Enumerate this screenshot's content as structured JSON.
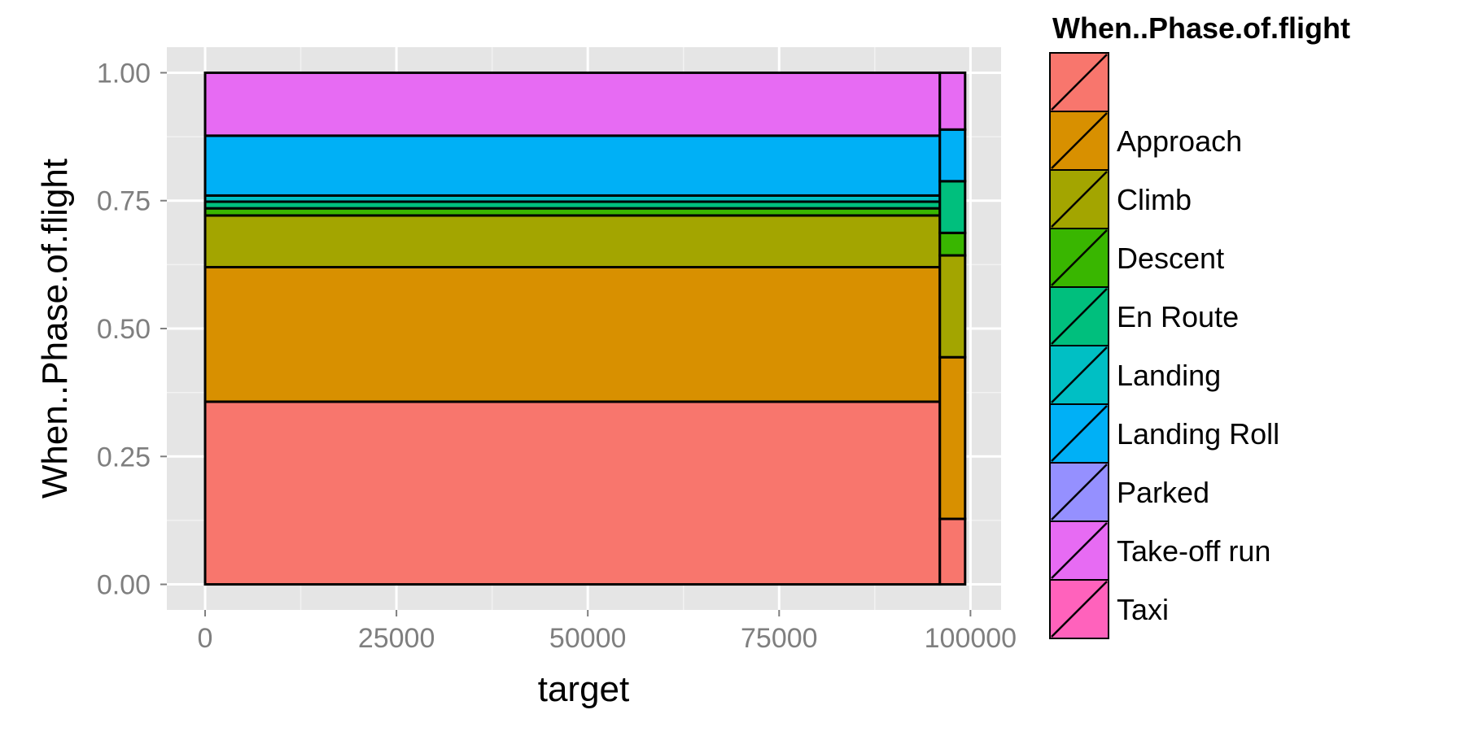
{
  "chart_data": {
    "type": "bar",
    "subtype": "stacked-proportion-variable-width",
    "title": "",
    "xlabel": "target",
    "ylabel": "When..Phase.of.flight",
    "xlim": [
      -5000,
      104000
    ],
    "ylim": [
      -0.05,
      1.05
    ],
    "x_ticks": [
      0,
      25000,
      50000,
      75000,
      100000
    ],
    "x_tick_labels": [
      "0",
      "25000",
      "50000",
      "75000",
      "100000"
    ],
    "y_ticks": [
      0,
      0.25,
      0.5,
      0.75,
      1.0
    ],
    "y_tick_labels": [
      "0.00",
      "0.25",
      "0.50",
      "0.75",
      "1.00"
    ],
    "grid": true,
    "legend": {
      "title": "When..Phase.of.flight",
      "position": "right",
      "entries": [
        {
          "label": "",
          "color": "#F8766D"
        },
        {
          "label": "Approach",
          "color": "#D89000"
        },
        {
          "label": "Climb",
          "color": "#A3A500"
        },
        {
          "label": "Descent",
          "color": "#39B600"
        },
        {
          "label": "En Route",
          "color": "#00BF7D"
        },
        {
          "label": "Landing",
          "color": "#00BFC4"
        },
        {
          "label": "Landing Roll",
          "color": "#00B0F6"
        },
        {
          "label": "Parked",
          "color": "#9590FF"
        },
        {
          "label": "Take-off run",
          "color": "#E76BF3"
        },
        {
          "label": "Taxi",
          "color": "#FF62BC"
        }
      ]
    },
    "bars": [
      {
        "x_start": 0,
        "x_end": 96000,
        "segments": [
          {
            "category": "",
            "y0": 0.0,
            "y1": 0.357
          },
          {
            "category": "Approach",
            "y0": 0.357,
            "y1": 0.62
          },
          {
            "category": "Climb",
            "y0": 0.62,
            "y1": 0.721
          },
          {
            "category": "Descent",
            "y0": 0.721,
            "y1": 0.735
          },
          {
            "category": "En Route",
            "y0": 0.735,
            "y1": 0.748
          },
          {
            "category": "Landing",
            "y0": 0.748,
            "y1": 0.76
          },
          {
            "category": "Landing Roll",
            "y0": 0.76,
            "y1": 0.877
          },
          {
            "category": "Take-off run",
            "y0": 0.877,
            "y1": 1.0
          }
        ]
      },
      {
        "x_start": 96000,
        "x_end": 99300,
        "segments": [
          {
            "category": "",
            "y0": 0.0,
            "y1": 0.128
          },
          {
            "category": "Approach",
            "y0": 0.128,
            "y1": 0.444
          },
          {
            "category": "Climb",
            "y0": 0.444,
            "y1": 0.643
          },
          {
            "category": "Descent",
            "y0": 0.643,
            "y1": 0.687
          },
          {
            "category": "En Route",
            "y0": 0.687,
            "y1": 0.788
          },
          {
            "category": "Landing Roll",
            "y0": 0.788,
            "y1": 0.889
          },
          {
            "category": "Take-off run",
            "y0": 0.889,
            "y1": 1.0
          }
        ]
      }
    ]
  }
}
